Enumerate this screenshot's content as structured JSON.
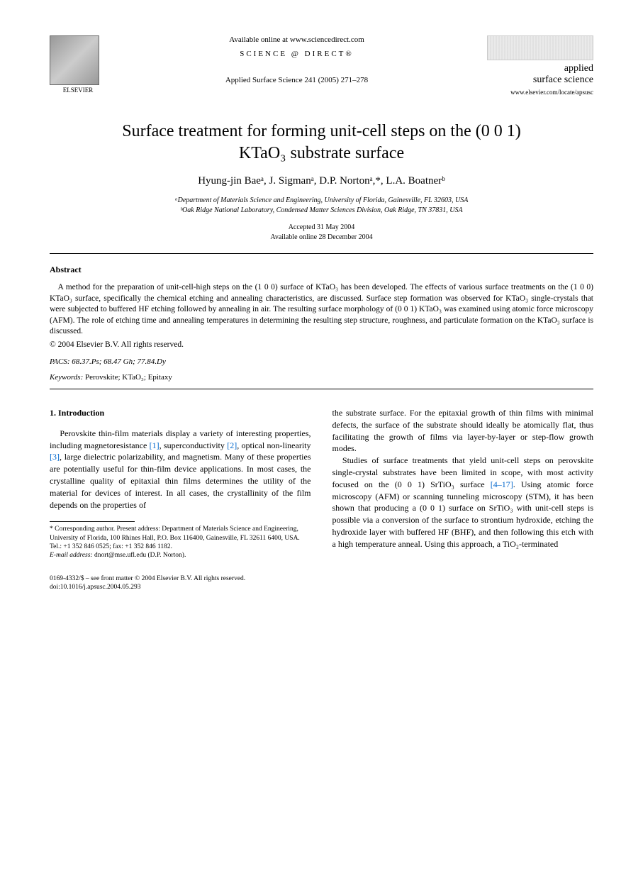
{
  "header": {
    "elsevier_label": "ELSEVIER",
    "available_online": "Available online at www.sciencedirect.com",
    "science_direct": "SCIENCE @ DIRECT®",
    "journal_ref": "Applied Surface Science 241 (2005) 271–278",
    "journal_line1": "applied",
    "journal_line2": "surface science",
    "journal_url": "www.elsevier.com/locate/apsusc"
  },
  "title_line1": "Surface treatment for forming unit-cell steps on the (0 0 1)",
  "title_line2": "KTaO₃ substrate surface",
  "authors_html": "Hyung-jin Baeᵃ, J. Sigmanᵃ, D.P. Nortonᵃ,*, L.A. Boatnerᵇ",
  "affiliation_a": "ᵃDepartment of Materials Science and Engineering, University of Florida, Gainesville, FL 32603, USA",
  "affiliation_b": "ᵇOak Ridge National Laboratory, Condensed Matter Sciences Division, Oak Ridge, TN 37831, USA",
  "accepted": "Accepted 31 May 2004",
  "available": "Available online 28 December 2004",
  "abstract_heading": "Abstract",
  "abstract_text": "A method for the preparation of unit-cell-high steps on the (1 0 0) surface of KTaO₃ has been developed. The effects of various surface treatments on the (1 0 0) KTaO₃ surface, specifically the chemical etching and annealing characteristics, are discussed. Surface step formation was observed for KTaO₃ single-crystals that were subjected to buffered HF etching followed by annealing in air. The resulting surface morphology of (0 0 1) KTaO₃ was examined using atomic force microscopy (AFM). The role of etching time and annealing temperatures in determining the resulting step structure, roughness, and particulate formation on the KTaO₃ surface is discussed.",
  "copyright": "© 2004 Elsevier B.V. All rights reserved.",
  "pacs": "PACS: 68.37.Ps; 68.47 Gh; 77.84.Dy",
  "keywords_label": "Keywords:",
  "keywords_text": " Perovskite; KTaO₃; Epitaxy",
  "section1_heading": "1. Introduction",
  "col1_para": "Perovskite thin-film materials display a variety of interesting properties, including magnetoresistance [1], superconductivity [2], optical non-linearity [3], large dielectric polarizability, and magnetism. Many of these properties are potentially useful for thin-film device applications. In most cases, the crystalline quality of epitaxial thin films determines the utility of the material for devices of interest. In all cases, the crystallinity of the film depends on the properties of",
  "col2_para1": "the substrate surface. For the epitaxial growth of thin films with minimal defects, the surface of the substrate should ideally be atomically flat, thus facilitating the growth of films via layer-by-layer or step-flow growth modes.",
  "col2_para2": "Studies of surface treatments that yield unit-cell steps on perovskite single-crystal substrates have been limited in scope, with most activity focused on the (0 0 1) SrTiO₃ surface [4–17]. Using atomic force microscopy (AFM) or scanning tunneling microscopy (STM), it has been shown that producing a (0 0 1) surface on SrTiO₃ with unit-cell steps is possible via a conversion of the surface to strontium hydroxide, etching the hydroxide layer with buffered HF (BHF), and then following this etch with a high temperature anneal. Using this approach, a TiO₂-terminated",
  "footnote_marker": "* ",
  "footnote_text": "Corresponding author. Present address: Department of Materials Science and Engineering, University of Florida, 100 Rhines Hall, P.O. Box 116400, Gainesville, FL 32611 6400, USA.",
  "footnote_tel": "Tel.: +1 352 846 0525; fax: +1 352 846 1182.",
  "footnote_email_label": "E-mail address:",
  "footnote_email": " dnort@mse.ufl.edu (D.P. Norton).",
  "footer_line1": "0169-4332/$ – see front matter © 2004 Elsevier B.V. All rights reserved.",
  "footer_line2": "doi:10.1016/j.apsusc.2004.05.293",
  "refs": {
    "r1": "[1]",
    "r2": "[2]",
    "r3": "[3]",
    "r4_17": "[4–17]"
  }
}
